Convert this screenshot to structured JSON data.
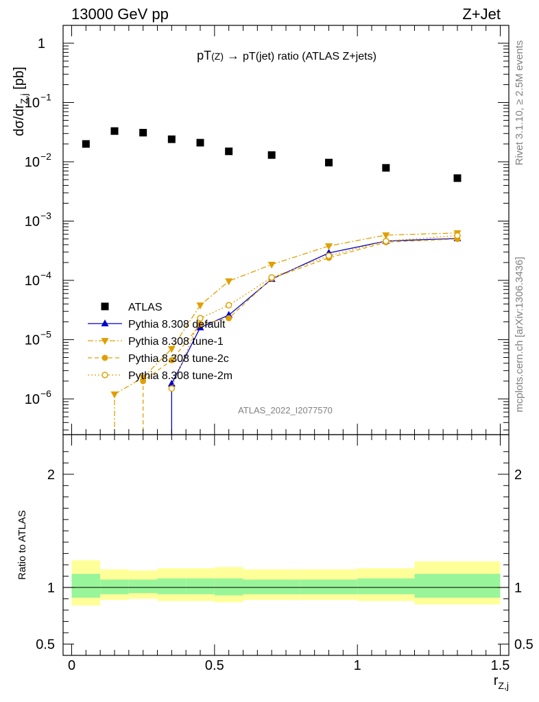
{
  "header": {
    "left": "13000 GeV pp",
    "right": "Z+Jet"
  },
  "plot_title": {
    "pre": "pT",
    "sub1": "(Z)",
    "arrow": " → ",
    "rest": "pT(jet) ratio (ATLAS Z+jets)"
  },
  "side_text": {
    "rivet": "Rivet 3.1.10, ≥ 2.5M events",
    "site": "mcplots.cern.ch [arXiv:1306.3436]"
  },
  "watermark": "ATLAS_2022_I2077570",
  "axes": {
    "ylabel_main": "dσ/dr",
    "ylabel_main_sub": "Z,j",
    "ylabel_main_unit": " [pb]",
    "ylabel_ratio": "Ratio to ATLAS",
    "xlabel": "r",
    "xlabel_sub": "Z,j"
  },
  "colors": {
    "data": "#000000",
    "default": "#0000cc",
    "tunes": "#e0a000",
    "band_inner": "#99f599",
    "band_outer": "#ffff99"
  },
  "chart_data": [
    {
      "type": "scatter",
      "panel": "main",
      "yscale": "log",
      "xlim": [
        -0.03,
        1.53
      ],
      "ylim": [
        2.5e-07,
        2.0
      ],
      "y_ticks": [
        {
          "value": 1e-06,
          "label": "10",
          "exp": "−6"
        },
        {
          "value": 1e-05,
          "label": "10",
          "exp": "−5"
        },
        {
          "value": 0.0001,
          "label": "10",
          "exp": "−4"
        },
        {
          "value": 0.001,
          "label": "10",
          "exp": "−3"
        },
        {
          "value": 0.01,
          "label": "10",
          "exp": "−2"
        },
        {
          "value": 0.1,
          "label": "10",
          "exp": "−1"
        },
        {
          "value": 1,
          "label": "1",
          "exp": ""
        }
      ],
      "legend_position": "middle-left",
      "series": [
        {
          "name": "ATLAS",
          "style": "data",
          "x": [
            0.05,
            0.15,
            0.25,
            0.35,
            0.45,
            0.55,
            0.7,
            0.9,
            1.1,
            1.35
          ],
          "y": [
            0.02,
            0.033,
            0.031,
            0.024,
            0.021,
            0.015,
            0.013,
            0.0097,
            0.0079,
            0.0053
          ]
        },
        {
          "name": "Pythia 8.308 default",
          "style": "default",
          "x": [
            0.35,
            0.45,
            0.55,
            0.7,
            0.9,
            1.1,
            1.35
          ],
          "y": [
            1.8e-06,
            1.6e-05,
            2.6e-05,
            0.000105,
            0.00029,
            0.00046,
            0.00051
          ],
          "drop_from": 0.35
        },
        {
          "name": "Pythia 8.308 tune-1",
          "style": "tune1",
          "x": [
            0.15,
            0.25,
            0.35,
            0.45,
            0.55,
            0.7,
            0.9,
            1.1,
            1.35
          ],
          "y": [
            1.2e-06,
            2.3e-06,
            7e-06,
            3.8e-05,
            9.7e-05,
            0.000185,
            0.00038,
            0.00058,
            0.00063
          ],
          "drop_from": 0.15
        },
        {
          "name": "Pythia 8.308 tune-2c",
          "style": "tune2c",
          "x": [
            0.25,
            0.35,
            0.45,
            0.55,
            0.7,
            0.9,
            1.1,
            1.35
          ],
          "y": [
            2e-06,
            4.5e-06,
            1.8e-05,
            2.3e-05,
            0.000108,
            0.00024,
            0.00044,
            0.0005
          ],
          "drop_from": 0.25
        },
        {
          "name": "Pythia 8.308 tune-2m",
          "style": "tune2m",
          "x": [
            0.35,
            0.45,
            0.55,
            0.7,
            0.9,
            1.1,
            1.35
          ],
          "y": [
            1.5e-06,
            2.3e-05,
            3.8e-05,
            0.000112,
            0.00026,
            0.00046,
            0.00057
          ]
        }
      ]
    },
    {
      "type": "area",
      "panel": "ratio",
      "xlim": [
        -0.03,
        1.53
      ],
      "ylim": [
        0.4,
        2.35
      ],
      "x_ticks": [
        {
          "value": 0,
          "label": "0"
        },
        {
          "value": 0.5,
          "label": "0.5"
        },
        {
          "value": 1,
          "label": "1"
        },
        {
          "value": 1.5,
          "label": "1.5"
        }
      ],
      "y_ticks": [
        {
          "value": 0.5,
          "label": "0.5"
        },
        {
          "value": 1,
          "label": "1"
        },
        {
          "value": 2,
          "label": "2"
        }
      ],
      "bins": [
        {
          "x_lo": 0.0,
          "x_hi": 0.1,
          "inner": [
            0.91,
            1.12
          ],
          "outer": [
            0.84,
            1.24
          ]
        },
        {
          "x_lo": 0.1,
          "x_hi": 0.2,
          "inner": [
            0.94,
            1.07
          ],
          "outer": [
            0.89,
            1.16
          ]
        },
        {
          "x_lo": 0.2,
          "x_hi": 0.3,
          "inner": [
            0.95,
            1.07
          ],
          "outer": [
            0.9,
            1.15
          ]
        },
        {
          "x_lo": 0.3,
          "x_hi": 0.4,
          "inner": [
            0.94,
            1.08
          ],
          "outer": [
            0.88,
            1.17
          ]
        },
        {
          "x_lo": 0.4,
          "x_hi": 0.5,
          "inner": [
            0.94,
            1.08
          ],
          "outer": [
            0.88,
            1.17
          ]
        },
        {
          "x_lo": 0.5,
          "x_hi": 0.6,
          "inner": [
            0.93,
            1.08
          ],
          "outer": [
            0.87,
            1.18
          ]
        },
        {
          "x_lo": 0.6,
          "x_hi": 0.8,
          "inner": [
            0.94,
            1.07
          ],
          "outer": [
            0.89,
            1.16
          ]
        },
        {
          "x_lo": 0.8,
          "x_hi": 1.0,
          "inner": [
            0.94,
            1.07
          ],
          "outer": [
            0.89,
            1.16
          ]
        },
        {
          "x_lo": 1.0,
          "x_hi": 1.2,
          "inner": [
            0.94,
            1.08
          ],
          "outer": [
            0.88,
            1.17
          ]
        },
        {
          "x_lo": 1.2,
          "x_hi": 1.5,
          "inner": [
            0.91,
            1.12
          ],
          "outer": [
            0.85,
            1.23
          ]
        }
      ],
      "reference": 1.0
    }
  ]
}
